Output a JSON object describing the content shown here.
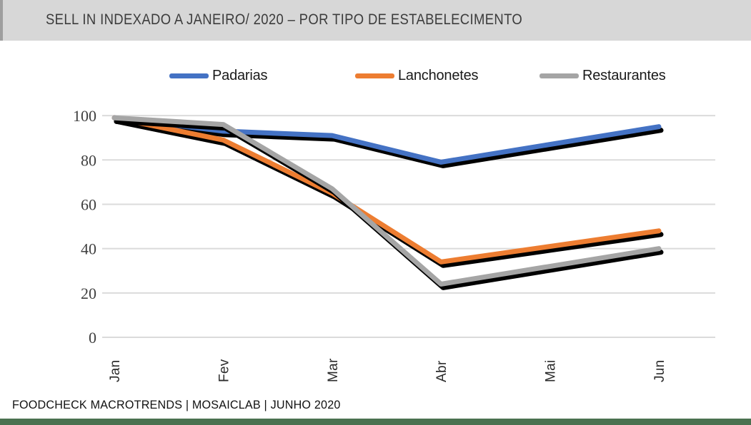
{
  "title": {
    "text": "SELL IN INDEXADO A JANEIRO/ 2020 – POR TIPO DE ESTABELECIMENTO"
  },
  "footer": {
    "text": "FOODCHECK MACROTRENDS | MOSAICLAB |  JUNHO 2020"
  },
  "colors": {
    "banner_bg": "#D7D7D7",
    "banner_edge": "#9E9E9E",
    "grid": "#DBDBDB",
    "ytick_text": "#3F3F3F",
    "xtick_text": "#2B2B2B",
    "line_shadow": "#000000",
    "padarias": "#4472C4",
    "lanchonetes": "#ED7D31",
    "restaurantes": "#A5A5A5",
    "footer_bar": "#4A7150"
  },
  "chart_data": {
    "type": "line",
    "title": "SELL IN INDEXADO A JANEIRO/ 2020 – POR TIPO DE ESTABELECIMENTO",
    "categories": [
      "Jan",
      "Fev",
      "Mar",
      "Abr",
      "Mai",
      "Jun"
    ],
    "series": [
      {
        "name": "Padarias",
        "color": "#4472C4",
        "values": [
          99,
          93,
          91,
          79,
          87,
          95
        ]
      },
      {
        "name": "Lanchonetes",
        "color": "#ED7D31",
        "values": [
          99,
          89,
          65,
          34,
          41,
          48
        ]
      },
      {
        "name": "Restaurantes",
        "color": "#A5A5A5",
        "values": [
          99,
          96,
          67,
          24,
          32,
          40
        ]
      }
    ],
    "yticks": [
      100,
      80,
      60,
      40,
      20,
      0
    ],
    "ylim": [
      0,
      100
    ],
    "xlabel": "",
    "ylabel": "",
    "grid": "horizontal",
    "legend_position": "top",
    "x_label_rotation": -90
  }
}
